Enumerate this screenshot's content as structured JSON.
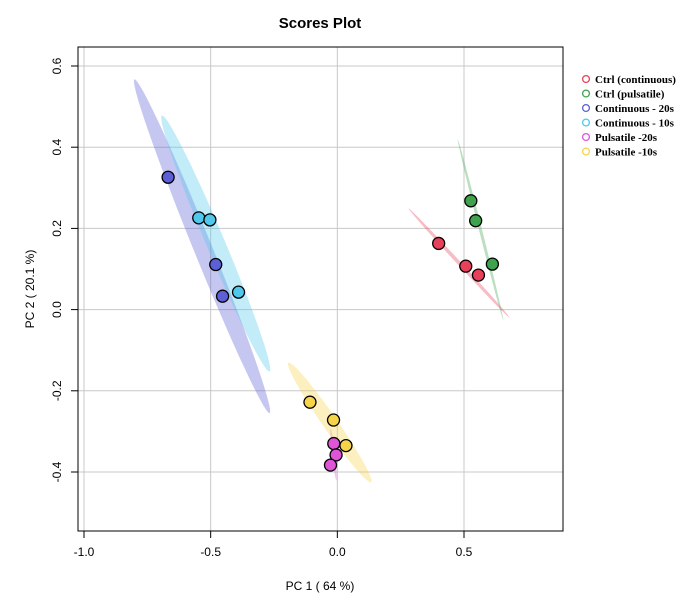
{
  "chart_data": {
    "type": "scatter",
    "title": "Scores Plot",
    "xlabel": "PC 1 ( 64 %)",
    "ylabel": "PC 2 ( 20.1 %)",
    "xlim": [
      -1.0,
      0.9
    ],
    "ylim": [
      -0.54,
      0.66
    ],
    "x_ticks": [
      -1.0,
      -0.5,
      0.0,
      0.5
    ],
    "x_tick_labels": [
      "-1.0",
      "-0.5",
      "0.0",
      "0.5"
    ],
    "y_ticks": [
      -0.4,
      -0.2,
      0.0,
      0.2,
      0.4,
      0.6
    ],
    "y_tick_labels": [
      "-0.4",
      "-0.2",
      "0.0",
      "0.2",
      "0.4",
      "0.6"
    ],
    "grid": true,
    "legend_position": "right",
    "series": [
      {
        "name": "Ctrl (continuous)",
        "color": "#e8405a",
        "points": [
          [
            0.4,
            0.163
          ],
          [
            0.507,
            0.107
          ],
          [
            0.557,
            0.085
          ]
        ],
        "ellipse": {
          "cx": 0.48,
          "cy": 0.115,
          "half_length": 0.24,
          "half_width": 0.005,
          "angle_deg": -34
        }
      },
      {
        "name": "Ctrl (pulsatile)",
        "color": "#3fa34d",
        "points": [
          [
            0.527,
            0.268
          ],
          [
            0.546,
            0.219
          ],
          [
            0.612,
            0.112
          ]
        ],
        "ellipse": {
          "cx": 0.565,
          "cy": 0.197,
          "half_length": 0.24,
          "half_width": 0.005,
          "angle_deg": -68
        }
      },
      {
        "name": "Continuous - 20s",
        "color": "#5c5fd6",
        "points": [
          [
            -0.668,
            0.326
          ],
          [
            -0.48,
            0.111
          ],
          [
            -0.453,
            0.033
          ]
        ],
        "ellipse": {
          "cx": -0.534,
          "cy": 0.156,
          "half_length": 0.49,
          "half_width": 0.03,
          "angle_deg": -57
        }
      },
      {
        "name": "Continuous - 10s",
        "color": "#4fc8ec",
        "points": [
          [
            -0.547,
            0.226
          ],
          [
            -0.503,
            0.221
          ],
          [
            -0.39,
            0.043
          ]
        ],
        "ellipse": {
          "cx": -0.48,
          "cy": 0.163,
          "half_length": 0.38,
          "half_width": 0.03,
          "angle_deg": -56
        }
      },
      {
        "name": "Pulsatile -20s",
        "color": "#e055d8",
        "points": [
          [
            -0.014,
            -0.33
          ],
          [
            -0.005,
            -0.358
          ],
          [
            -0.027,
            -0.383
          ]
        ],
        "ellipse": {
          "cx": -0.015,
          "cy": -0.357,
          "half_length": 0.065,
          "half_width": 0.004,
          "angle_deg": -80
        }
      },
      {
        "name": "Pulsatile -10s",
        "color": "#f5d44a",
        "points": [
          [
            -0.108,
            -0.228
          ],
          [
            -0.015,
            -0.272
          ],
          [
            0.034,
            -0.335
          ]
        ],
        "ellipse": {
          "cx": -0.03,
          "cy": -0.278,
          "half_length": 0.22,
          "half_width": 0.021,
          "angle_deg": -42
        }
      }
    ]
  }
}
